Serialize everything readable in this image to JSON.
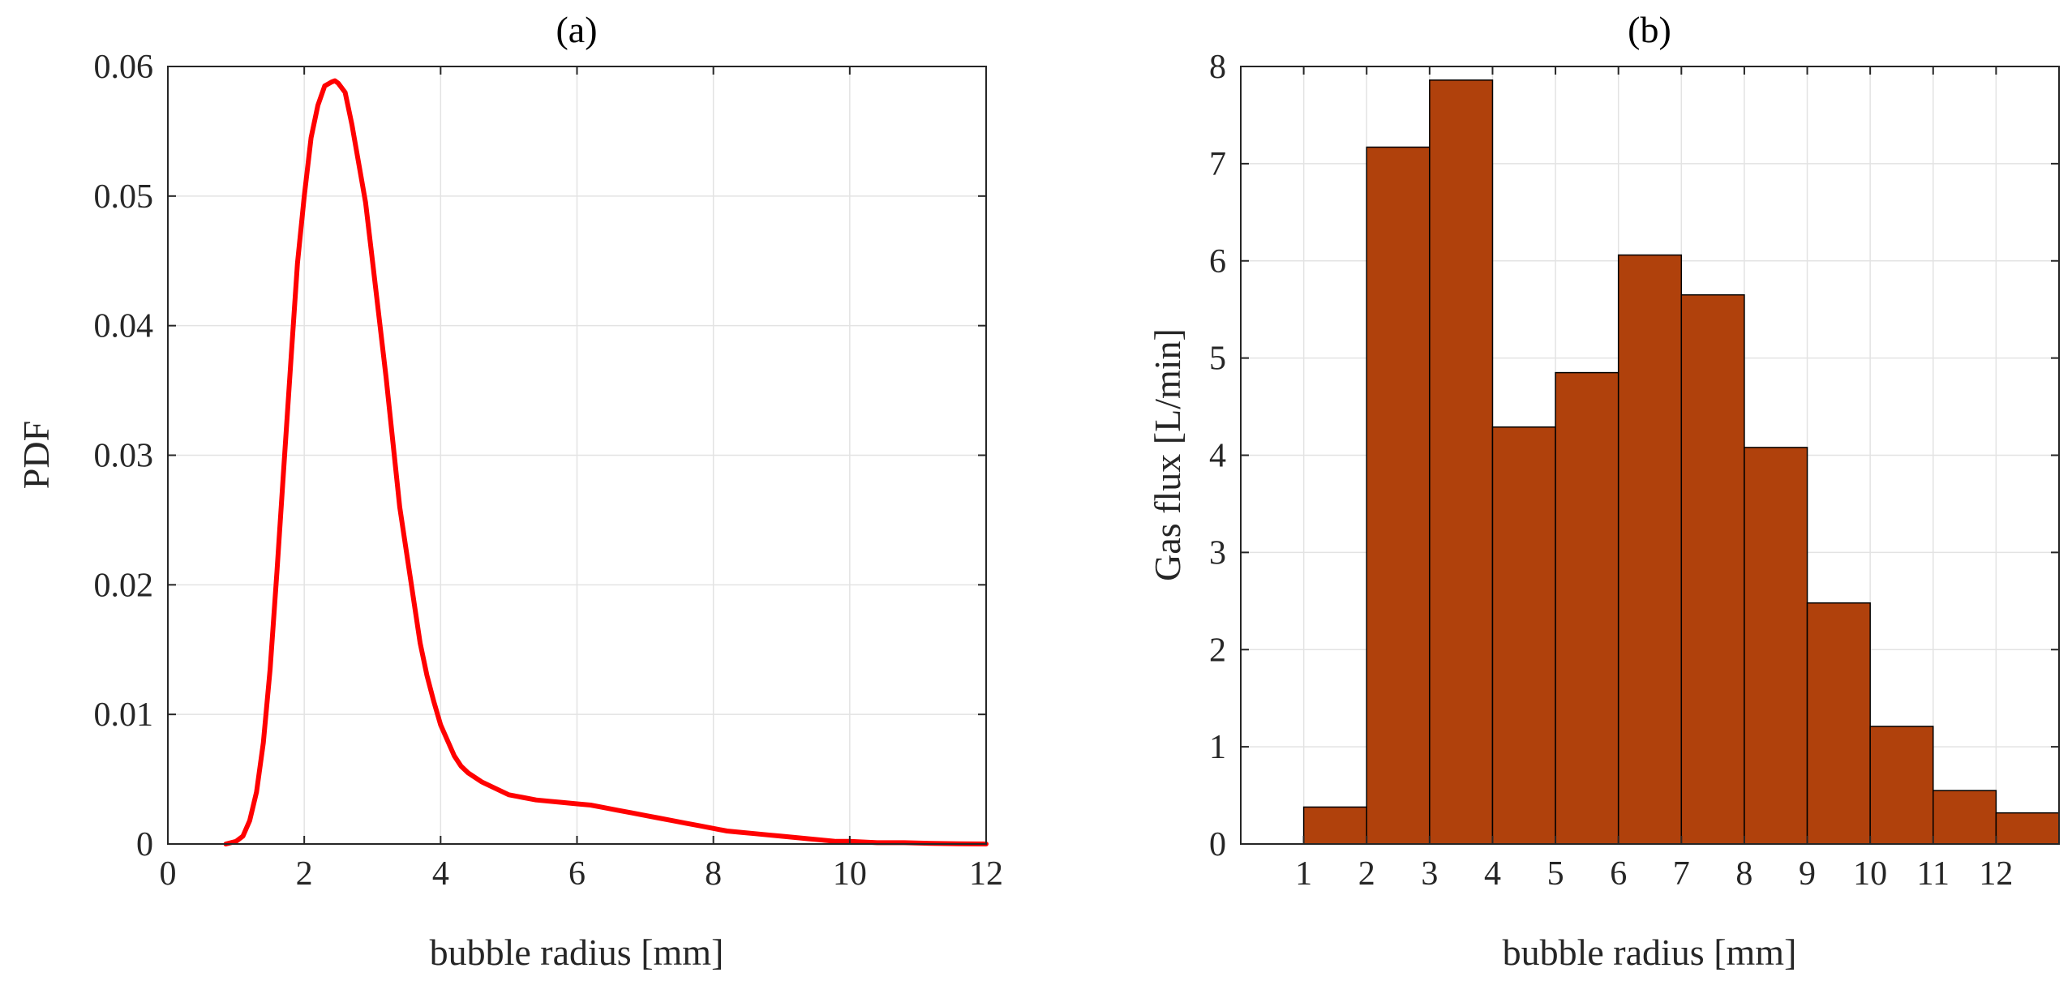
{
  "chart_data": [
    {
      "type": "line",
      "title": "(a)",
      "xlabel": "bubble radius [mm]",
      "ylabel": "PDF",
      "xlim": [
        0,
        12
      ],
      "ylim": [
        0,
        0.06
      ],
      "xticks": [
        0,
        2,
        4,
        6,
        8,
        10,
        12
      ],
      "yticks": [
        0,
        0.01,
        0.02,
        0.03,
        0.04,
        0.05,
        0.06
      ],
      "xtick_labels": [
        "0",
        "2",
        "4",
        "6",
        "8",
        "10",
        "12"
      ],
      "ytick_labels": [
        "0",
        "0.01",
        "0.02",
        "0.03",
        "0.04",
        "0.05",
        "0.06"
      ],
      "grid": true,
      "color": "#ff0000",
      "series": [
        {
          "name": "PDF",
          "x": [
            0.85,
            1.0,
            1.1,
            1.2,
            1.3,
            1.4,
            1.5,
            1.6,
            1.7,
            1.8,
            1.9,
            2.0,
            2.1,
            2.2,
            2.3,
            2.4,
            2.45,
            2.5,
            2.6,
            2.7,
            2.8,
            2.9,
            3.0,
            3.1,
            3.2,
            3.3,
            3.4,
            3.5,
            3.6,
            3.7,
            3.8,
            3.9,
            4.0,
            4.1,
            4.2,
            4.3,
            4.4,
            4.6,
            4.8,
            5.0,
            5.2,
            5.4,
            5.6,
            5.8,
            6.0,
            6.2,
            6.4,
            6.6,
            6.8,
            7.0,
            7.2,
            7.4,
            7.6,
            7.8,
            8.0,
            8.2,
            8.4,
            8.6,
            8.8,
            9.0,
            9.2,
            9.4,
            9.6,
            9.8,
            10.0,
            10.4,
            10.8,
            11.2,
            11.6,
            12.0
          ],
          "y": [
            0.0,
            0.0002,
            0.0006,
            0.0018,
            0.004,
            0.0078,
            0.0135,
            0.021,
            0.029,
            0.037,
            0.0448,
            0.05,
            0.0545,
            0.057,
            0.0585,
            0.0588,
            0.0589,
            0.0587,
            0.058,
            0.0555,
            0.0525,
            0.0495,
            0.045,
            0.0405,
            0.036,
            0.031,
            0.026,
            0.0225,
            0.019,
            0.0155,
            0.013,
            0.011,
            0.0092,
            0.008,
            0.0068,
            0.006,
            0.0055,
            0.0048,
            0.0043,
            0.0038,
            0.0036,
            0.0034,
            0.0033,
            0.0032,
            0.0031,
            0.003,
            0.0028,
            0.0026,
            0.0024,
            0.0022,
            0.002,
            0.0018,
            0.0016,
            0.0014,
            0.0012,
            0.001,
            0.0009,
            0.0008,
            0.0007,
            0.0006,
            0.0005,
            0.0004,
            0.0003,
            0.0002,
            0.0002,
            0.0001,
            0.0001,
            5e-05,
            2e-05,
            0.0
          ]
        }
      ]
    },
    {
      "type": "bar",
      "title": "(b)",
      "xlabel": "bubble radius [mm]",
      "ylabel": "Gas flux [L/min]",
      "xlim": [
        0,
        13
      ],
      "ylim": [
        0,
        8
      ],
      "categories": [
        "1",
        "2",
        "3",
        "4",
        "5",
        "6",
        "7",
        "8",
        "9",
        "10",
        "11",
        "12"
      ],
      "bin_edges": [
        1,
        2,
        3,
        4,
        5,
        6,
        7,
        8,
        9,
        10,
        11,
        12,
        13
      ],
      "values": [
        0.38,
        7.17,
        7.86,
        4.29,
        4.85,
        6.06,
        5.65,
        4.08,
        2.48,
        1.21,
        0.55,
        0.32
      ],
      "yticks": [
        0,
        1,
        2,
        3,
        4,
        5,
        6,
        7,
        8
      ],
      "ytick_labels": [
        "0",
        "1",
        "2",
        "3",
        "4",
        "5",
        "6",
        "7",
        "8"
      ],
      "grid": true,
      "color": "#b0410c",
      "edge_color": "#000000"
    }
  ]
}
